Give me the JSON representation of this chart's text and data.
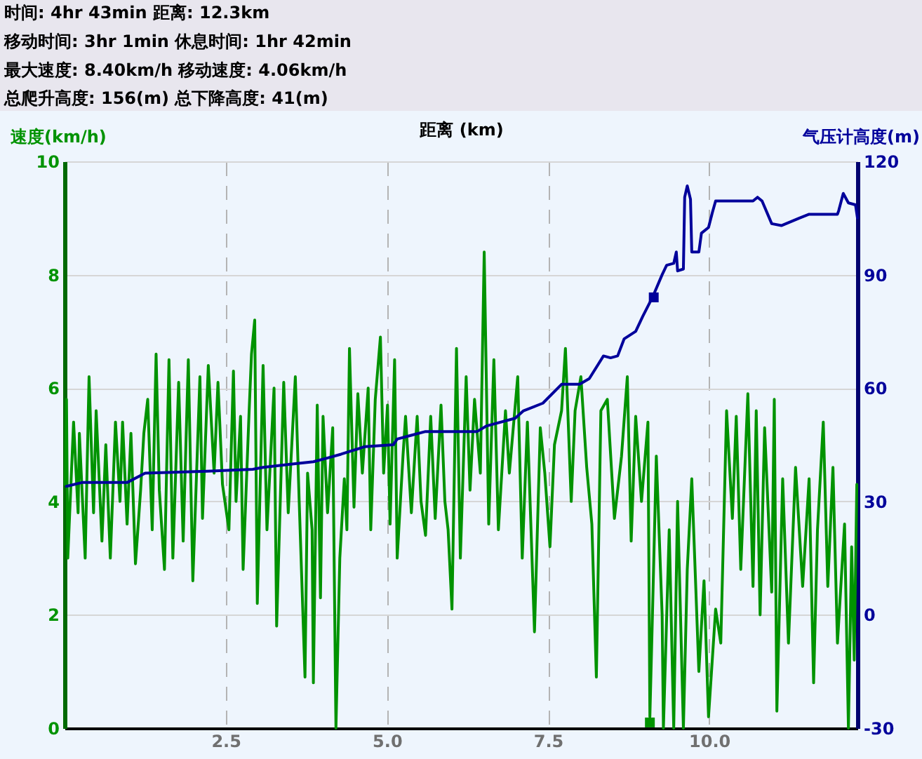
{
  "chart_data": {
    "type": "line",
    "annotations": [
      "时间: 4hr 43min  距离: 12.3km",
      "移动时间: 3hr 1min  休息时间: 1hr 42min",
      "最大速度: 8.40km/h  移动速度: 4.06km/h",
      "总爬升高度: 156(m)  总下降高度: 41(m)"
    ],
    "xlabel": "距离 (km)",
    "ylabel": "速度(km/h)",
    "y2label": "气压计高度(m)",
    "xlim": [
      0,
      12.3
    ],
    "xticks": [
      2.5,
      {
        "value": 5,
        "label": "5.0"
      },
      7.5,
      {
        "value": 10,
        "label": "10.0"
      }
    ],
    "ylim": [
      0,
      10
    ],
    "yticks": [
      0,
      2,
      4,
      6,
      8,
      10
    ],
    "y2lim": [
      -30,
      120
    ],
    "y2ticks": [
      -30,
      0,
      30,
      60,
      90,
      120
    ],
    "grid": true,
    "series": [
      {
        "color": "#009300",
        "x": [
          0.01,
          0.03,
          0.05,
          0.14,
          0.21,
          0.23,
          0.32,
          0.38,
          0.45,
          0.49,
          0.58,
          0.64,
          0.71,
          0.79,
          0.86,
          0.9,
          0.97,
          1.03,
          1.1,
          1.18,
          1.23,
          1.29,
          1.36,
          1.42,
          1.47,
          1.55,
          1.62,
          1.68,
          1.77,
          1.84,
          1.92,
          1.99,
          2.1,
          2.14,
          2.23,
          2.32,
          2.38,
          2.45,
          2.55,
          2.62,
          2.66,
          2.73,
          2.77,
          2.86,
          2.9,
          2.95,
          2.99,
          3.08,
          3.14,
          3.25,
          3.29,
          3.4,
          3.47,
          3.58,
          3.64,
          3.73,
          3.77,
          3.84,
          3.86,
          3.92,
          3.97,
          4.01,
          4.08,
          4.16,
          4.21,
          4.27,
          4.34,
          4.38,
          4.42,
          4.49,
          4.55,
          4.62,
          4.71,
          4.75,
          4.82,
          4.9,
          4.95,
          5.01,
          5.05,
          5.12,
          5.16,
          5.25,
          5.29,
          5.38,
          5.47,
          5.53,
          5.6,
          5.68,
          5.75,
          5.84,
          5.9,
          5.95,
          6.01,
          6.08,
          6.14,
          6.23,
          6.29,
          6.36,
          6.45,
          6.51,
          6.58,
          6.66,
          6.73,
          6.84,
          6.9,
          7.03,
          7.1,
          7.18,
          7.29,
          7.38,
          7.45,
          7.53,
          7.6,
          7.71,
          7.77,
          7.86,
          7.92,
          8.01,
          8.1,
          8.18,
          8.25,
          8.32,
          8.42,
          8.53,
          8.64,
          8.73,
          8.79,
          8.86,
          8.95,
          9.05,
          9.08,
          9.12,
          9.18,
          9.27,
          9.29,
          9.38,
          9.45,
          9.51,
          9.6,
          9.66,
          9.73,
          9.84,
          9.92,
          9.99,
          10.1,
          10.18,
          10.27,
          10.36,
          10.42,
          10.49,
          10.6,
          10.68,
          10.73,
          10.79,
          10.86,
          10.97,
          11.01,
          11.05,
          11.14,
          11.23,
          11.34,
          11.45,
          11.55,
          11.62,
          11.68,
          11.77,
          11.84,
          11.92,
          11.99,
          12.1,
          12.16,
          12.21,
          12.25,
          12.29
        ],
        "values": [
          4.3,
          5.8,
          3.0,
          5.4,
          3.8,
          5.2,
          3.0,
          6.2,
          3.8,
          5.6,
          3.3,
          5.0,
          3.0,
          5.4,
          4.0,
          5.4,
          3.6,
          5.2,
          2.9,
          4.2,
          5.2,
          5.8,
          3.5,
          6.6,
          4.2,
          2.8,
          6.5,
          3.0,
          6.1,
          3.3,
          6.5,
          2.6,
          6.2,
          3.7,
          6.4,
          4.5,
          6.1,
          4.3,
          3.5,
          6.3,
          4.0,
          5.5,
          2.8,
          5.5,
          6.6,
          7.2,
          2.2,
          6.4,
          3.5,
          6.0,
          1.8,
          6.1,
          3.8,
          6.2,
          4.0,
          0.9,
          4.5,
          3.5,
          0.8,
          5.7,
          2.3,
          5.5,
          3.8,
          5.3,
          0.0,
          3.0,
          4.4,
          3.5,
          6.7,
          3.9,
          5.9,
          4.5,
          6.0,
          3.5,
          5.8,
          6.9,
          4.5,
          5.7,
          3.6,
          6.5,
          3.0,
          4.8,
          5.5,
          3.8,
          5.5,
          4.0,
          3.4,
          5.5,
          3.7,
          5.7,
          4.0,
          3.5,
          2.1,
          6.7,
          3.0,
          6.2,
          4.2,
          5.8,
          4.5,
          8.4,
          3.6,
          6.5,
          3.5,
          5.6,
          4.5,
          6.2,
          3.0,
          5.4,
          1.7,
          5.3,
          4.5,
          3.2,
          5.0,
          5.6,
          6.7,
          4.0,
          5.6,
          6.2,
          4.6,
          3.6,
          0.9,
          5.6,
          5.8,
          3.7,
          4.8,
          6.2,
          3.3,
          5.5,
          4.0,
          5.4,
          0.2,
          2.0,
          4.8,
          2.0,
          0.0,
          3.5,
          0.0,
          4.0,
          0.0,
          2.8,
          4.4,
          1.0,
          2.6,
          0.2,
          2.1,
          1.5,
          5.6,
          3.7,
          5.5,
          2.8,
          5.9,
          2.5,
          5.6,
          2.0,
          5.3,
          2.4,
          5.8,
          0.3,
          4.4,
          1.5,
          4.6,
          2.5,
          4.4,
          0.8,
          3.5,
          5.4,
          2.5,
          4.6,
          1.5,
          3.6,
          0.0,
          3.2,
          1.2,
          4.3
        ]
      },
      {
        "color": "#00009b",
        "axis": "y2",
        "x": [
          0.03,
          0.27,
          0.97,
          1.25,
          2.21,
          2.92,
          3.08,
          3.58,
          3.86,
          4.08,
          4.29,
          4.66,
          5.1,
          5.16,
          5.38,
          5.6,
          6.18,
          6.4,
          6.55,
          6.99,
          7.12,
          7.42,
          7.71,
          7.99,
          8.14,
          8.36,
          8.47,
          8.58,
          8.68,
          8.86,
          8.97,
          9.12,
          9.27,
          9.34,
          9.45,
          9.49,
          9.51,
          9.6,
          9.62,
          9.66,
          9.71,
          9.73,
          9.84,
          9.88,
          9.99,
          10.05,
          10.1,
          10.68,
          10.75,
          10.82,
          10.97,
          11.12,
          11.4,
          11.55,
          11.99,
          12.01,
          12.08,
          12.16,
          12.27,
          12.3
        ],
        "values": [
          34,
          35,
          35,
          37.5,
          38,
          38.5,
          39,
          40,
          40.5,
          41.5,
          42.5,
          44.5,
          45,
          46.5,
          47.5,
          48.5,
          48.5,
          48.5,
          50,
          52,
          54,
          56,
          61,
          61,
          62.5,
          68.5,
          68,
          68.5,
          73,
          75,
          79,
          84,
          90,
          92.5,
          93,
          96,
          91,
          91.5,
          110.5,
          113.5,
          110,
          96,
          96,
          101,
          102.5,
          106.5,
          109.5,
          109.5,
          110.5,
          109.5,
          103.5,
          103,
          105,
          106,
          106,
          107,
          111.5,
          109,
          108.5,
          105
        ]
      },
      {
        "type": "scatter",
        "marker": "square",
        "color": "#009300",
        "x": [
          9.08
        ],
        "values": [
          0.1
        ]
      },
      {
        "type": "scatter",
        "marker": "square",
        "color": "#00009b",
        "axis": "y2",
        "x": [
          9.14
        ],
        "values": [
          84
        ]
      }
    ]
  }
}
